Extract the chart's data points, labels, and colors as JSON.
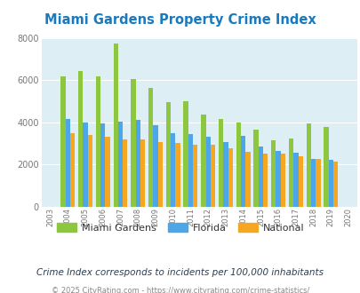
{
  "title": "Miami Gardens Property Crime Index",
  "years": [
    2003,
    2004,
    2005,
    2006,
    2007,
    2008,
    2009,
    2010,
    2011,
    2012,
    2013,
    2014,
    2015,
    2016,
    2017,
    2018,
    2019,
    2020
  ],
  "miami_gardens": [
    null,
    6200,
    6450,
    6200,
    7750,
    6050,
    5650,
    4950,
    5000,
    4350,
    4150,
    4000,
    3650,
    3150,
    3250,
    3950,
    3800,
    null
  ],
  "florida": [
    null,
    4150,
    4000,
    3950,
    4050,
    4100,
    3850,
    3500,
    3450,
    3300,
    3050,
    3350,
    2850,
    2650,
    2550,
    2250,
    2200,
    null
  ],
  "national": [
    null,
    3500,
    3400,
    3300,
    3200,
    3200,
    3050,
    3000,
    2950,
    2950,
    2750,
    2600,
    2500,
    2500,
    2400,
    2250,
    2150,
    null
  ],
  "miami_color": "#8dc63f",
  "florida_color": "#4da6e8",
  "national_color": "#f5a623",
  "bg_color": "#ffffff",
  "plot_bg": "#ddeef5",
  "ylim": [
    0,
    8000
  ],
  "yticks": [
    0,
    2000,
    4000,
    6000,
    8000
  ],
  "subtitle": "Crime Index corresponds to incidents per 100,000 inhabitants",
  "footer": "© 2025 CityRating.com - https://www.cityrating.com/crime-statistics/",
  "title_color": "#1a7abf",
  "subtitle_color": "#2c3e50",
  "footer_color": "#888888"
}
